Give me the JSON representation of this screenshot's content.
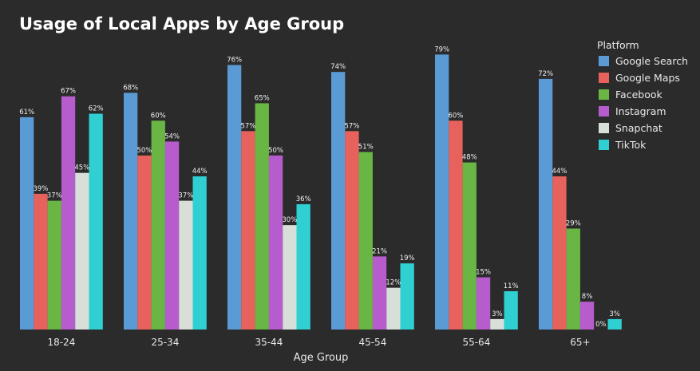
{
  "chart_data": {
    "type": "bar",
    "title": "Usage of Local Apps by Age Group",
    "xlabel": "Age Group",
    "ylabel": "",
    "ylim": [
      0,
      80
    ],
    "grid": false,
    "legend": {
      "title": "Platform",
      "placement": "top-right"
    },
    "categories": [
      "18-24",
      "25-34",
      "35-44",
      "45-54",
      "55-64",
      "65+"
    ],
    "value_suffix": "%",
    "series": [
      {
        "name": "Google Search",
        "color": "#5b9bd5",
        "values": [
          61,
          68,
          76,
          74,
          79,
          72
        ]
      },
      {
        "name": "Google Maps",
        "color": "#e8625d",
        "values": [
          39,
          50,
          57,
          57,
          60,
          44
        ]
      },
      {
        "name": "Facebook",
        "color": "#6ab645",
        "values": [
          37,
          60,
          65,
          51,
          48,
          29
        ]
      },
      {
        "name": "Instagram",
        "color": "#b65ccc",
        "values": [
          67,
          54,
          50,
          21,
          15,
          8
        ]
      },
      {
        "name": "Snapchat",
        "color": "#d7dfd8",
        "values": [
          45,
          37,
          30,
          12,
          3,
          0
        ]
      },
      {
        "name": "TikTok",
        "color": "#2fcfd2",
        "values": [
          62,
          44,
          36,
          19,
          11,
          3
        ]
      }
    ]
  }
}
